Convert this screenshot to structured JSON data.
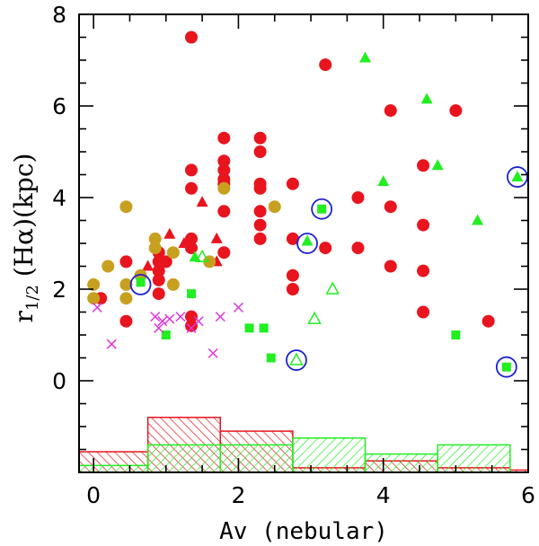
{
  "chart_data": {
    "type": "scatter",
    "title": "",
    "xlabel": "Av (nebular)",
    "ylabel": {
      "main": "r",
      "sub": "1/2",
      "rest": " (Hα)(kpc)"
    },
    "xlim": [
      -0.2,
      6.0
    ],
    "ylim": [
      -2.0,
      8.0
    ],
    "x_ticks": [
      0,
      2,
      4,
      6
    ],
    "x_tick_labels": [
      "0",
      "2",
      "4",
      "6"
    ],
    "y_ticks": [
      0,
      2,
      4,
      6,
      8
    ],
    "y_tick_labels": [
      "0",
      "2",
      "4",
      "6",
      "8"
    ],
    "grid": false,
    "colors": {
      "red": "#e8141e",
      "green": "#22ee22",
      "gold": "#c8a020",
      "magenta": "#dd33dd",
      "blue": "#1a22cc",
      "axis": "#000000"
    },
    "series": [
      {
        "name": "red-circles",
        "marker": "circle-filled",
        "color": "red",
        "points": [
          [
            0.1,
            1.8
          ],
          [
            0.45,
            2.6
          ],
          [
            0.45,
            1.3
          ],
          [
            0.9,
            2.8
          ],
          [
            0.9,
            2.6
          ],
          [
            0.9,
            2.4
          ],
          [
            0.9,
            2.2
          ],
          [
            0.9,
            1.9
          ],
          [
            1.0,
            2.6
          ],
          [
            1.35,
            7.5
          ],
          [
            1.35,
            4.6
          ],
          [
            1.35,
            4.2
          ],
          [
            1.35,
            3.1
          ],
          [
            1.35,
            2.9
          ],
          [
            1.35,
            1.4
          ],
          [
            1.35,
            1.2
          ],
          [
            1.8,
            5.3
          ],
          [
            1.8,
            4.8
          ],
          [
            1.8,
            4.6
          ],
          [
            1.8,
            4.4
          ],
          [
            1.8,
            4.3
          ],
          [
            1.8,
            3.7
          ],
          [
            1.8,
            2.8
          ],
          [
            2.3,
            5.3
          ],
          [
            2.3,
            5.0
          ],
          [
            2.3,
            4.3
          ],
          [
            2.3,
            4.2
          ],
          [
            2.3,
            3.7
          ],
          [
            2.3,
            3.4
          ],
          [
            2.3,
            3.1
          ],
          [
            2.75,
            4.3
          ],
          [
            2.75,
            3.1
          ],
          [
            2.75,
            2.3
          ],
          [
            2.75,
            2.0
          ],
          [
            3.2,
            6.9
          ],
          [
            3.2,
            2.9
          ],
          [
            3.65,
            4.0
          ],
          [
            3.65,
            2.9
          ],
          [
            4.1,
            5.9
          ],
          [
            4.1,
            3.8
          ],
          [
            4.1,
            2.5
          ],
          [
            4.55,
            4.7
          ],
          [
            4.55,
            3.4
          ],
          [
            4.55,
            2.4
          ],
          [
            4.55,
            1.5
          ],
          [
            5.0,
            5.9
          ],
          [
            5.45,
            1.3
          ]
        ]
      },
      {
        "name": "red-triangles",
        "marker": "triangle-filled",
        "color": "red",
        "points": [
          [
            0.75,
            2.5
          ],
          [
            1.05,
            3.2
          ],
          [
            1.25,
            3.0
          ],
          [
            1.5,
            3.9
          ],
          [
            1.7,
            3.1
          ],
          [
            1.7,
            2.6
          ]
        ]
      },
      {
        "name": "gold-circles",
        "marker": "circle-filled",
        "color": "gold",
        "points": [
          [
            0.0,
            2.1
          ],
          [
            0.0,
            1.8
          ],
          [
            0.2,
            2.5
          ],
          [
            0.45,
            3.8
          ],
          [
            0.45,
            2.1
          ],
          [
            0.45,
            1.8
          ],
          [
            0.65,
            2.3
          ],
          [
            0.85,
            3.1
          ],
          [
            0.85,
            2.9
          ],
          [
            1.1,
            2.8
          ],
          [
            1.1,
            2.1
          ],
          [
            1.6,
            2.6
          ],
          [
            1.8,
            4.2
          ],
          [
            2.5,
            3.8
          ]
        ]
      },
      {
        "name": "green-triangles-filled",
        "marker": "triangle-filled",
        "color": "green",
        "points": [
          [
            1.4,
            2.7
          ],
          [
            2.95,
            3.05
          ],
          [
            3.75,
            7.05
          ],
          [
            4.0,
            4.35
          ],
          [
            4.6,
            6.15
          ],
          [
            4.75,
            4.7
          ],
          [
            5.3,
            3.5
          ],
          [
            5.85,
            4.45
          ]
        ]
      },
      {
        "name": "green-triangles-open",
        "marker": "triangle-open",
        "color": "green",
        "points": [
          [
            1.5,
            2.7
          ],
          [
            2.8,
            0.45
          ],
          [
            3.05,
            1.35
          ],
          [
            3.3,
            2.0
          ]
        ]
      },
      {
        "name": "green-squares",
        "marker": "square-filled",
        "color": "green",
        "points": [
          [
            0.65,
            2.15
          ],
          [
            1.0,
            1.0
          ],
          [
            1.35,
            1.9
          ],
          [
            2.15,
            1.15
          ],
          [
            2.35,
            1.15
          ],
          [
            2.45,
            0.5
          ],
          [
            3.15,
            3.75
          ],
          [
            5.0,
            1.0
          ],
          [
            5.7,
            0.3
          ]
        ]
      },
      {
        "name": "magenta-crosses",
        "marker": "cross",
        "color": "magenta",
        "points": [
          [
            0.05,
            1.6
          ],
          [
            0.25,
            0.8
          ],
          [
            0.85,
            1.4
          ],
          [
            0.9,
            1.15
          ],
          [
            0.95,
            1.3
          ],
          [
            1.05,
            1.35
          ],
          [
            1.2,
            1.4
          ],
          [
            1.35,
            1.15
          ],
          [
            1.45,
            1.3
          ],
          [
            1.65,
            0.6
          ],
          [
            1.75,
            1.4
          ],
          [
            2.0,
            1.6
          ]
        ]
      },
      {
        "name": "blue-open-circles",
        "marker": "circle-open",
        "color": "blue",
        "points": [
          [
            0.65,
            2.1
          ],
          [
            2.8,
            0.45
          ],
          [
            2.95,
            3.0
          ],
          [
            3.15,
            3.75
          ],
          [
            5.7,
            0.3
          ],
          [
            5.85,
            4.45
          ]
        ]
      }
    ],
    "histograms": [
      {
        "name": "red-histogram",
        "color": "red",
        "hatch": "left",
        "bins": [
          [
            -0.2,
            0.75,
            -1.55
          ],
          [
            0.75,
            1.75,
            -0.8
          ],
          [
            1.75,
            2.75,
            -1.1
          ],
          [
            2.75,
            3.75,
            -1.9
          ],
          [
            3.75,
            4.75,
            -1.75
          ],
          [
            4.75,
            5.75,
            -1.9
          ],
          [
            5.75,
            6.0,
            -1.95
          ]
        ]
      },
      {
        "name": "green-histogram",
        "color": "green",
        "hatch": "right",
        "bins": [
          [
            -0.2,
            0.75,
            -1.85
          ],
          [
            0.75,
            1.75,
            -1.4
          ],
          [
            1.75,
            2.75,
            -1.4
          ],
          [
            2.75,
            3.75,
            -1.25
          ],
          [
            3.75,
            4.75,
            -1.6
          ],
          [
            4.75,
            5.75,
            -1.4
          ]
        ]
      }
    ]
  }
}
